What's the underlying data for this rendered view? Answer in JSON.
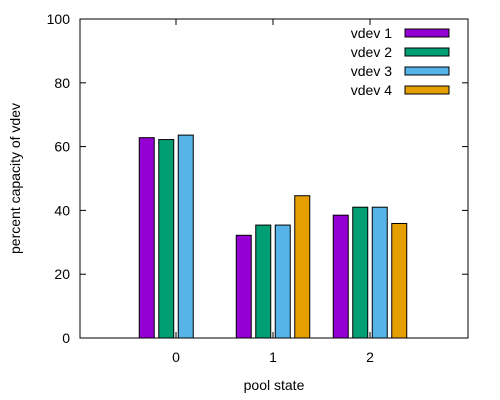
{
  "chart_data": {
    "type": "bar",
    "xlabel": "pool state",
    "ylabel": "percent capacity of vdev",
    "ylim": [
      0,
      100
    ],
    "yticks": [
      0,
      20,
      40,
      60,
      80,
      100
    ],
    "categories": [
      "0",
      "1",
      "2"
    ],
    "series": [
      {
        "name": "vdev 1",
        "color": "#9400d3",
        "values": [
          62.8,
          32.2,
          38.5
        ]
      },
      {
        "name": "vdev 2",
        "color": "#009e73",
        "values": [
          62.2,
          35.4,
          41.0
        ]
      },
      {
        "name": "vdev 3",
        "color": "#56b4e9",
        "values": [
          63.6,
          35.4,
          41.0
        ]
      },
      {
        "name": "vdev 4",
        "color": "#e69f00",
        "values": [
          null,
          44.6,
          35.9
        ]
      }
    ],
    "grid": false,
    "legend": "top-right"
  }
}
